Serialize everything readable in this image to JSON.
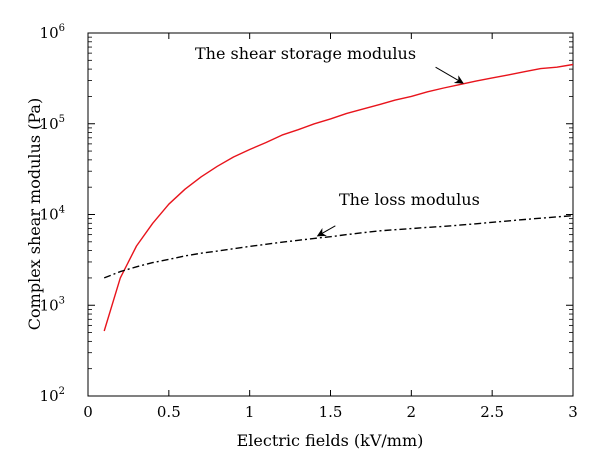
{
  "chart_data": {
    "type": "line",
    "title": "",
    "xlabel": "Electric fields (kV/mm)",
    "ylabel": "Complex shear modulus (Pa)",
    "xlim": [
      0,
      3
    ],
    "ylim": [
      100,
      1000000
    ],
    "yscale": "log",
    "grid": false,
    "x_ticks": [
      0,
      0.5,
      1,
      1.5,
      2,
      2.5,
      3
    ],
    "x_tick_labels": [
      "0",
      "0.5",
      "1",
      "1.5",
      "2",
      "2.5",
      "3"
    ],
    "y_ticks": [
      100,
      1000,
      10000,
      100000,
      1000000
    ],
    "y_tick_base": "10",
    "y_tick_exponents": [
      "2",
      "3",
      "4",
      "5",
      "6"
    ],
    "series": [
      {
        "color": "#e8141c",
        "dash": "solid",
        "x": [
          0.1,
          0.2,
          0.3,
          0.4,
          0.5,
          0.6,
          0.7,
          0.8,
          0.9,
          1.0,
          1.1,
          1.2,
          1.3,
          1.4,
          1.5,
          1.6,
          1.7,
          1.8,
          1.9,
          2.0,
          2.1,
          2.2,
          2.3,
          2.4,
          2.5,
          2.6,
          2.7,
          2.8,
          2.9,
          3.0
        ],
        "y": [
          520,
          2000,
          4500,
          8000,
          13000,
          19000,
          26000,
          34000,
          43000,
          52000,
          62000,
          75000,
          86000,
          100000,
          113000,
          130000,
          145000,
          162000,
          182000,
          200000,
          225000,
          248000,
          270000,
          295000,
          320000,
          345000,
          375000,
          405000,
          420000,
          450000
        ]
      },
      {
        "color": "#000000",
        "dash": "dashdot",
        "x": [
          0.1,
          0.2,
          0.3,
          0.4,
          0.5,
          0.6,
          0.7,
          0.8,
          0.9,
          1.0,
          1.1,
          1.2,
          1.3,
          1.4,
          1.5,
          1.6,
          1.7,
          1.8,
          1.9,
          2.0,
          2.1,
          2.2,
          2.3,
          2.4,
          2.5,
          2.6,
          2.7,
          2.8,
          2.9,
          3.0
        ],
        "y": [
          2000,
          2350,
          2650,
          2950,
          3200,
          3500,
          3750,
          3950,
          4200,
          4450,
          4700,
          4950,
          5200,
          5450,
          5700,
          6000,
          6300,
          6600,
          6800,
          7000,
          7200,
          7400,
          7650,
          7900,
          8200,
          8500,
          8800,
          9100,
          9400,
          9700
        ]
      }
    ],
    "annotations": [
      {
        "text": "The shear storage modulus",
        "arrow_from": [
          2.15,
          420000
        ],
        "arrow_to": [
          2.32,
          280000
        ]
      },
      {
        "text": "The loss modulus",
        "arrow_from": [
          1.53,
          7500
        ],
        "arrow_to": [
          1.42,
          5800
        ]
      }
    ]
  }
}
